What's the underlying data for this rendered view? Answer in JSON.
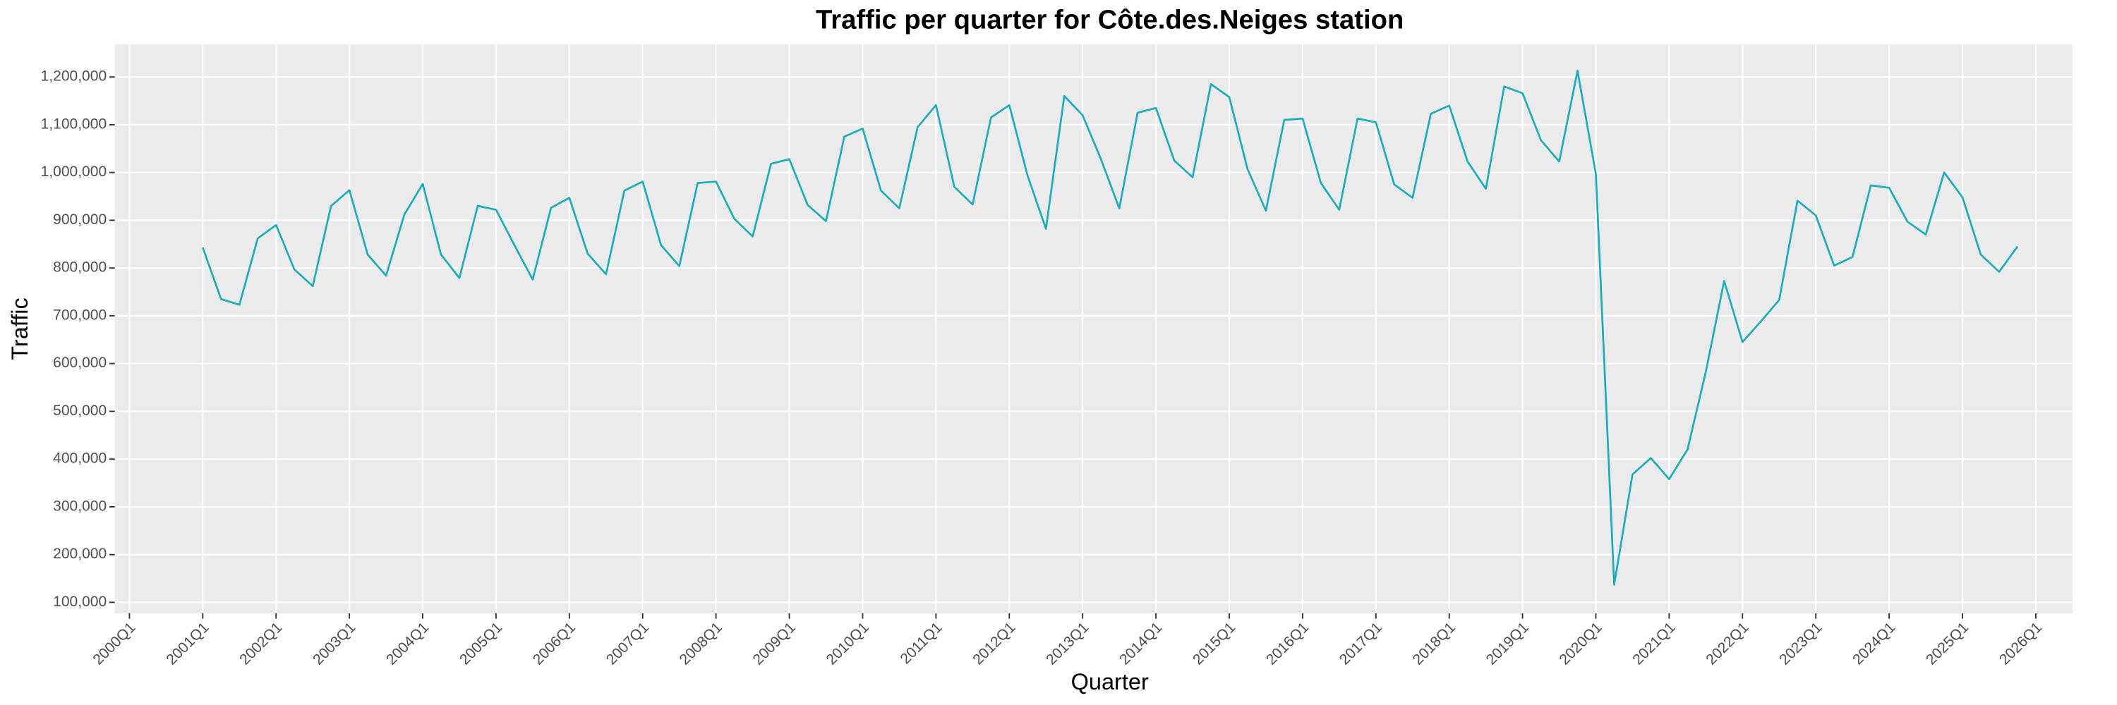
{
  "chart_data": {
    "type": "line",
    "title": "Traffic per quarter for Côte.des.Neiges station",
    "xlabel": "Quarter",
    "ylabel": "Traffic",
    "x": [
      2001,
      2001.25,
      2001.5,
      2001.75,
      2002,
      2002.25,
      2002.5,
      2002.75,
      2003,
      2003.25,
      2003.5,
      2003.75,
      2004,
      2004.25,
      2004.5,
      2004.75,
      2005,
      2005.25,
      2005.5,
      2005.75,
      2006,
      2006.25,
      2006.5,
      2006.75,
      2007,
      2007.25,
      2007.5,
      2007.75,
      2008,
      2008.25,
      2008.5,
      2008.75,
      2009,
      2009.25,
      2009.5,
      2009.75,
      2010,
      2010.25,
      2010.5,
      2010.75,
      2011,
      2011.25,
      2011.5,
      2011.75,
      2012,
      2012.25,
      2012.5,
      2012.75,
      2013,
      2013.25,
      2013.5,
      2013.75,
      2014,
      2014.25,
      2014.5,
      2014.75,
      2015,
      2015.25,
      2015.5,
      2015.75,
      2016,
      2016.25,
      2016.5,
      2016.75,
      2017,
      2017.25,
      2017.5,
      2017.75,
      2018,
      2018.25,
      2018.5,
      2018.75,
      2019,
      2019.25,
      2019.5,
      2019.75,
      2020,
      2020.25,
      2020.5,
      2020.75,
      2021,
      2021.25,
      2021.5,
      2021.75,
      2022,
      2022.25,
      2022.5,
      2022.75,
      2023,
      2023.25,
      2023.5,
      2023.75,
      2024,
      2024.25,
      2024.5,
      2024.75,
      2025,
      2025.25,
      2025.5,
      2025.75
    ],
    "series": [
      {
        "name": "Traffic",
        "color": "#1aaebc",
        "values": [
          843000,
          735000,
          723000,
          862000,
          890000,
          797000,
          762000,
          930000,
          963000,
          828000,
          784000,
          912000,
          976000,
          828000,
          779000,
          930000,
          922000,
          848000,
          776000,
          926000,
          947000,
          830000,
          787000,
          962000,
          981000,
          848000,
          804000,
          978000,
          981000,
          903000,
          866000,
          1018000,
          1028000,
          932000,
          898000,
          1075000,
          1092000,
          962000,
          925000,
          1095000,
          1141000,
          970000,
          933000,
          1115000,
          1141000,
          993000,
          882000,
          1160000,
          1120000,
          1028000,
          925000,
          1125000,
          1135000,
          1025000,
          990000,
          1185000,
          1158000,
          1007000,
          920000,
          1110000,
          1113000,
          978000,
          922000,
          1113000,
          1105000,
          975000,
          947000,
          1123000,
          1140000,
          1023000,
          966000,
          1180000,
          1166000,
          1068000,
          1023000,
          1213000,
          997000,
          137000,
          368000,
          402000,
          358000,
          420000,
          583000,
          773000,
          645000,
          688000,
          733000,
          941000,
          910000,
          805000,
          823000,
          973000,
          968000,
          897000,
          870000,
          1000000,
          948000,
          828000,
          792000,
          845000
        ]
      }
    ],
    "xlim": [
      1999.8,
      2026.5
    ],
    "ylim": [
      77000,
      1268000
    ],
    "xticks": [
      {
        "value": 2000,
        "label": "2000Q1"
      },
      {
        "value": 2001,
        "label": "2001Q1"
      },
      {
        "value": 2002,
        "label": "2002Q1"
      },
      {
        "value": 2003,
        "label": "2003Q1"
      },
      {
        "value": 2004,
        "label": "2004Q1"
      },
      {
        "value": 2005,
        "label": "2005Q1"
      },
      {
        "value": 2006,
        "label": "2006Q1"
      },
      {
        "value": 2007,
        "label": "2007Q1"
      },
      {
        "value": 2008,
        "label": "2008Q1"
      },
      {
        "value": 2009,
        "label": "2009Q1"
      },
      {
        "value": 2010,
        "label": "2010Q1"
      },
      {
        "value": 2011,
        "label": "2011Q1"
      },
      {
        "value": 2012,
        "label": "2012Q1"
      },
      {
        "value": 2013,
        "label": "2013Q1"
      },
      {
        "value": 2014,
        "label": "2014Q1"
      },
      {
        "value": 2015,
        "label": "2015Q1"
      },
      {
        "value": 2016,
        "label": "2016Q1"
      },
      {
        "value": 2017,
        "label": "2017Q1"
      },
      {
        "value": 2018,
        "label": "2018Q1"
      },
      {
        "value": 2019,
        "label": "2019Q1"
      },
      {
        "value": 2020,
        "label": "2020Q1"
      },
      {
        "value": 2021,
        "label": "2021Q1"
      },
      {
        "value": 2022,
        "label": "2022Q1"
      },
      {
        "value": 2023,
        "label": "2023Q1"
      },
      {
        "value": 2024,
        "label": "2024Q1"
      },
      {
        "value": 2025,
        "label": "2025Q1"
      },
      {
        "value": 2026,
        "label": "2026Q1"
      }
    ],
    "yticks": [
      {
        "value": 100000,
        "label": "100,000"
      },
      {
        "value": 200000,
        "label": "200,000"
      },
      {
        "value": 300000,
        "label": "300,000"
      },
      {
        "value": 400000,
        "label": "400,000"
      },
      {
        "value": 500000,
        "label": "500,000"
      },
      {
        "value": 600000,
        "label": "600,000"
      },
      {
        "value": 700000,
        "label": "700,000"
      },
      {
        "value": 800000,
        "label": "800,000"
      },
      {
        "value": 900000,
        "label": "900,000"
      },
      {
        "value": 1000000,
        "label": "1,000,000"
      },
      {
        "value": 1100000,
        "label": "1,100,000"
      },
      {
        "value": 1200000,
        "label": "1,200,000"
      }
    ],
    "grid": true
  }
}
